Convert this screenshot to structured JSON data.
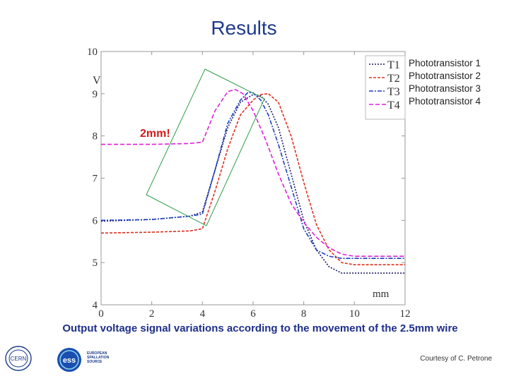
{
  "slide": {
    "title": "Results",
    "caption": "Output voltage signal variations according to the movement of the 2.5mm wire",
    "annotation": "2mm!",
    "credit": "Courtesy of C. Petrone",
    "logos": {
      "cern": "CERN",
      "ess_lines": [
        "EUROPEAN",
        "SPALLATION",
        "SOURCE"
      ],
      "ess_mark": "ess"
    }
  },
  "chart_data": {
    "type": "line",
    "title": "",
    "xlabel": "mm",
    "ylabel": "V",
    "xlim": [
      0,
      12
    ],
    "ylim": [
      4,
      10
    ],
    "xticks": [
      "0",
      "2",
      "4",
      "6",
      "8",
      "10",
      "12"
    ],
    "yticks": [
      "4",
      "5",
      "6",
      "7",
      "8",
      "9",
      "10"
    ],
    "grid": false,
    "legend_position": "top-right",
    "series": [
      {
        "name": "T1",
        "label": "Phototransistor 1",
        "color": "#1a1a66",
        "dash": "2,2",
        "x": [
          0,
          2,
          3.5,
          4.0,
          4.5,
          5,
          5.5,
          6.0,
          6.3,
          6.6,
          7,
          7.5,
          8,
          8.5,
          9,
          9.5,
          10,
          11,
          12
        ],
        "y": [
          5.98,
          6.02,
          6.1,
          6.2,
          7.2,
          8.2,
          8.8,
          8.98,
          8.95,
          8.75,
          8.2,
          7.1,
          6.0,
          5.3,
          4.9,
          4.75,
          4.75,
          4.75,
          4.75
        ]
      },
      {
        "name": "T2",
        "label": "Phototransistor 2",
        "color": "#e03020",
        "dash": "4,2",
        "x": [
          0,
          2,
          3.5,
          4.0,
          4.5,
          5,
          5.5,
          6.0,
          6.3,
          6.6,
          7,
          7.5,
          8,
          8.5,
          9,
          9.5,
          10,
          11,
          12
        ],
        "y": [
          5.7,
          5.72,
          5.75,
          5.8,
          6.7,
          7.7,
          8.5,
          8.85,
          8.98,
          9.0,
          8.8,
          8.0,
          6.9,
          5.9,
          5.3,
          5.0,
          4.95,
          4.95,
          4.95
        ]
      },
      {
        "name": "T3",
        "label": "Phototransistor 3",
        "color": "#1a3fbf",
        "dash": "6,2,2,2",
        "x": [
          0,
          2,
          3.5,
          4.0,
          4.5,
          5,
          5.5,
          5.8,
          6.0,
          6.3,
          6.6,
          7,
          7.5,
          8,
          8.5,
          9,
          9.5,
          10,
          11,
          12
        ],
        "y": [
          6.0,
          6.02,
          6.1,
          6.15,
          7.2,
          8.3,
          8.85,
          9.03,
          9.02,
          8.85,
          8.5,
          7.8,
          6.8,
          5.8,
          5.3,
          5.15,
          5.1,
          5.1,
          5.1,
          5.1
        ]
      },
      {
        "name": "T4",
        "label": "Phototransistor 4",
        "color": "#e020d8",
        "dash": "6,3",
        "x": [
          0,
          2,
          3.5,
          4.0,
          4.5,
          5,
          5.3,
          5.6,
          6,
          6.5,
          7,
          7.5,
          8,
          8.5,
          9,
          9.5,
          10,
          11,
          12
        ],
        "y": [
          7.8,
          7.8,
          7.82,
          7.85,
          8.6,
          9.05,
          9.1,
          9.0,
          8.6,
          7.9,
          7.1,
          6.4,
          5.95,
          5.6,
          5.35,
          5.2,
          5.15,
          5.15,
          5.15
        ]
      }
    ],
    "annotations": [
      {
        "text": "2mm!",
        "type": "rectangle-outline",
        "color": "#2e9e4a"
      }
    ]
  }
}
